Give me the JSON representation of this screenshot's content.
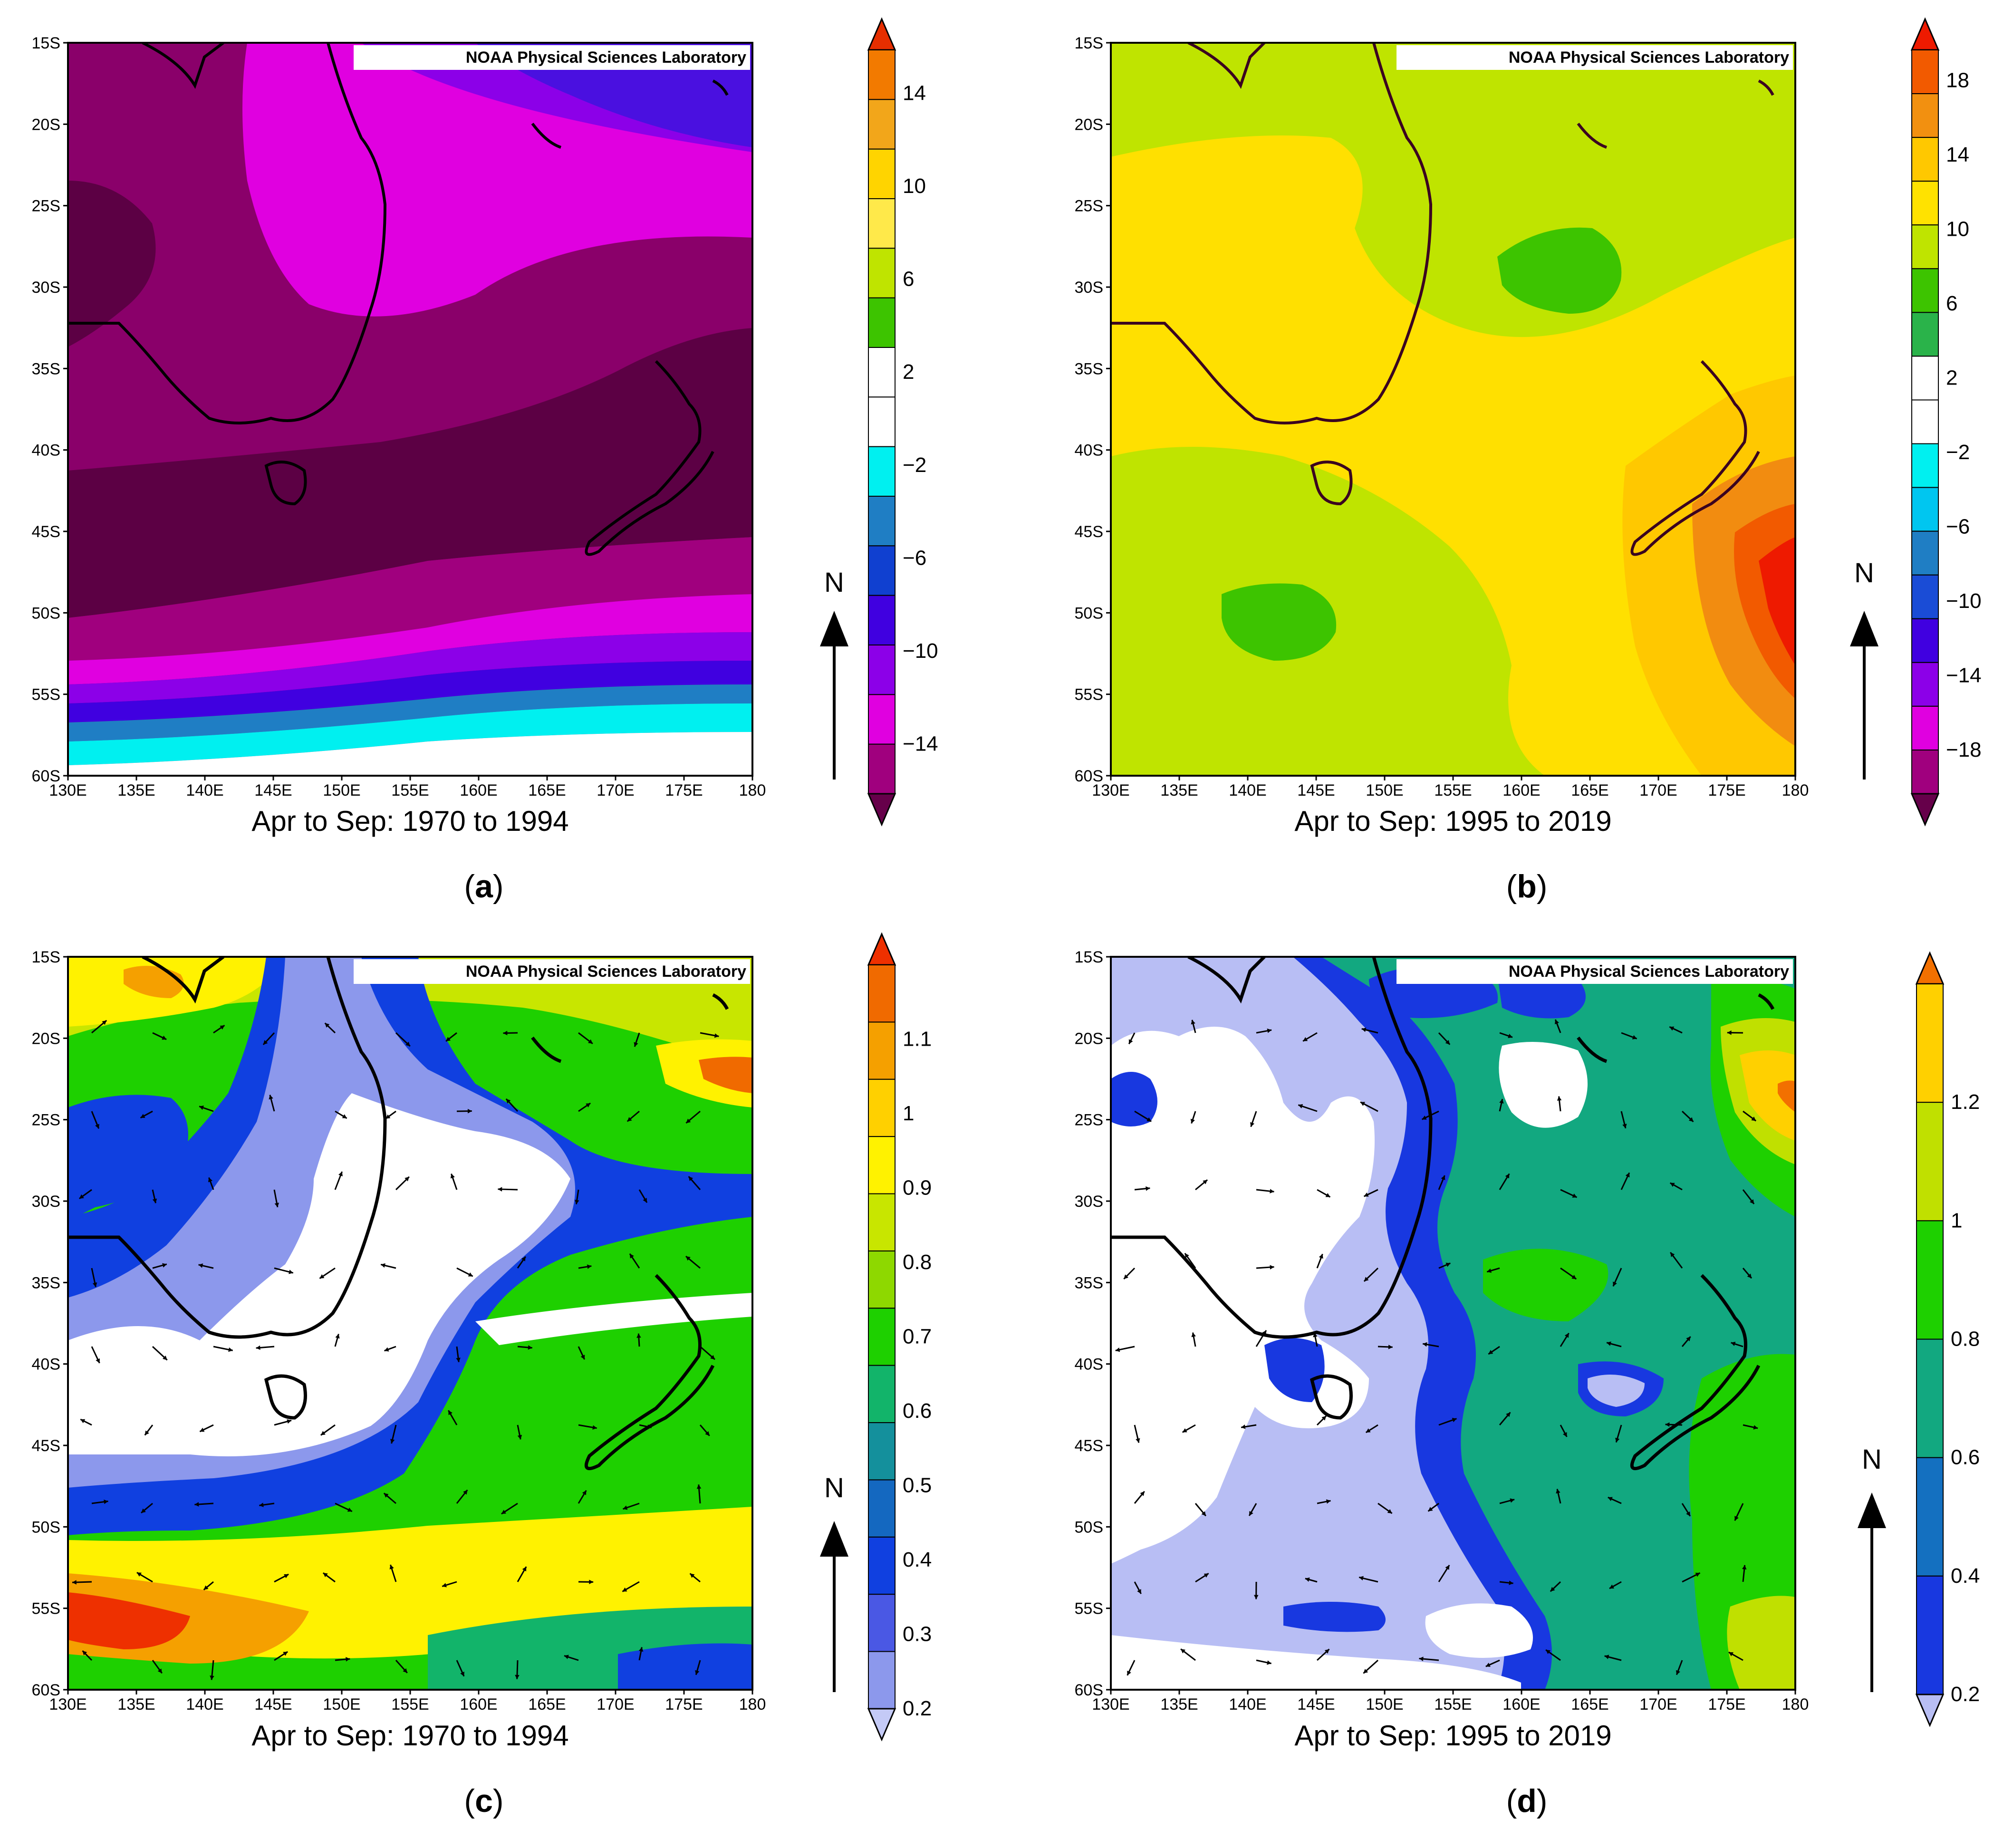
{
  "panels": [
    {
      "id": "a",
      "label": "(a)",
      "letter": "a",
      "credit": "NOAA Physical Sciences Laboratory",
      "caption": "Apr to Sep:  1970 to 1994",
      "north": "N",
      "x_ticks": [
        "130E",
        "135E",
        "140E",
        "145E",
        "150E",
        "155E",
        "160E",
        "165E",
        "170E",
        "175E",
        "180"
      ],
      "y_ticks": [
        "15S",
        "20S",
        "25S",
        "30S",
        "35S",
        "40S",
        "45S",
        "50S",
        "55S",
        "60S"
      ],
      "colorbar": {
        "labels": [
          "14",
          "10",
          "6",
          "2",
          "−2",
          "−6",
          "−10",
          "−14"
        ],
        "colors": [
          "#e62e00",
          "#f27a00",
          "#f2a61a",
          "#ffd400",
          "#ffe94a",
          "#bfe400",
          "#3dc400",
          "#ffffff",
          "#ffffff",
          "#00f0f0",
          "#1f7ec4",
          "#1040d0",
          "#4000e0",
          "#8c00e8",
          "#e000e0",
          "#a0007e",
          "#66004a"
        ]
      },
      "fields": [
        "contour-fill",
        "coastlines"
      ]
    },
    {
      "id": "b",
      "label": "(b)",
      "letter": "b",
      "credit": "NOAA Physical Sciences Laboratory",
      "caption": "Apr to Sep:  1995 to 2019",
      "north": "N",
      "x_ticks": [
        "130E",
        "135E",
        "140E",
        "145E",
        "150E",
        "155E",
        "160E",
        "165E",
        "170E",
        "175E",
        "180"
      ],
      "y_ticks": [
        "15S",
        "20S",
        "25S",
        "30S",
        "35S",
        "40S",
        "45S",
        "50S",
        "55S",
        "60S"
      ],
      "colorbar": {
        "labels": [
          "18",
          "14",
          "10",
          "6",
          "2",
          "−2",
          "−6",
          "−10",
          "−14",
          "−18"
        ],
        "colors": [
          "#ee1a00",
          "#f25a00",
          "#f29010",
          "#ffc800",
          "#ffe200",
          "#bfe400",
          "#3dc400",
          "#2ab34a",
          "#ffffff",
          "#ffffff",
          "#00f0f0",
          "#00c6f0",
          "#1f7ec4",
          "#1a4cd6",
          "#4000e0",
          "#8c00e8",
          "#e000e0",
          "#a0007e",
          "#66004a"
        ]
      },
      "fields": [
        "contour-fill",
        "coastlines"
      ]
    },
    {
      "id": "c",
      "label": "(c)",
      "letter": "c",
      "credit": "NOAA Physical Sciences Laboratory",
      "caption": "Apr to Sep:  1970 to 1994",
      "north": "N",
      "x_ticks": [
        "130E",
        "135E",
        "140E",
        "145E",
        "150E",
        "155E",
        "160E",
        "165E",
        "170E",
        "175E",
        "180"
      ],
      "y_ticks": [
        "15S",
        "20S",
        "25S",
        "30S",
        "35S",
        "40S",
        "45S",
        "50S",
        "55S",
        "60S"
      ],
      "colorbar": {
        "labels": [
          "1.1",
          "1",
          "0.9",
          "0.8",
          "0.7",
          "0.6",
          "0.5",
          "0.4",
          "0.3",
          "0.2"
        ],
        "colors": [
          "#ee3000",
          "#f06a00",
          "#f5a000",
          "#ffd000",
          "#fff200",
          "#c8e600",
          "#8ed800",
          "#1ed000",
          "#12b46a",
          "#14909c",
          "#1468c0",
          "#1040e0",
          "#4a58e4",
          "#8c98ec",
          "#c4caf6"
        ]
      },
      "fields": [
        "contour-fill",
        "coastlines",
        "wind-vectors"
      ]
    },
    {
      "id": "d",
      "label": "(d)",
      "letter": "d",
      "credit": "NOAA Physical Sciences Laboratory",
      "caption": "Apr to Sep:  1995 to 2019",
      "north": "N",
      "x_ticks": [
        "130E",
        "135E",
        "140E",
        "145E",
        "150E",
        "155E",
        "160E",
        "165E",
        "170E",
        "175E",
        "180"
      ],
      "y_ticks": [
        "15S",
        "20S",
        "25S",
        "30S",
        "35S",
        "40S",
        "45S",
        "50S",
        "55S",
        "60S"
      ],
      "colorbar": {
        "labels": [
          "1.2",
          "1",
          "0.8",
          "0.6",
          "0.4",
          "0.2"
        ],
        "colors": [
          "#f27000",
          "#ffd000",
          "#c0e000",
          "#1ed000",
          "#12a880",
          "#1470c0",
          "#1838e0",
          "#b8bef4"
        ]
      },
      "fields": [
        "contour-fill",
        "coastlines",
        "wind-vectors"
      ]
    }
  ]
}
